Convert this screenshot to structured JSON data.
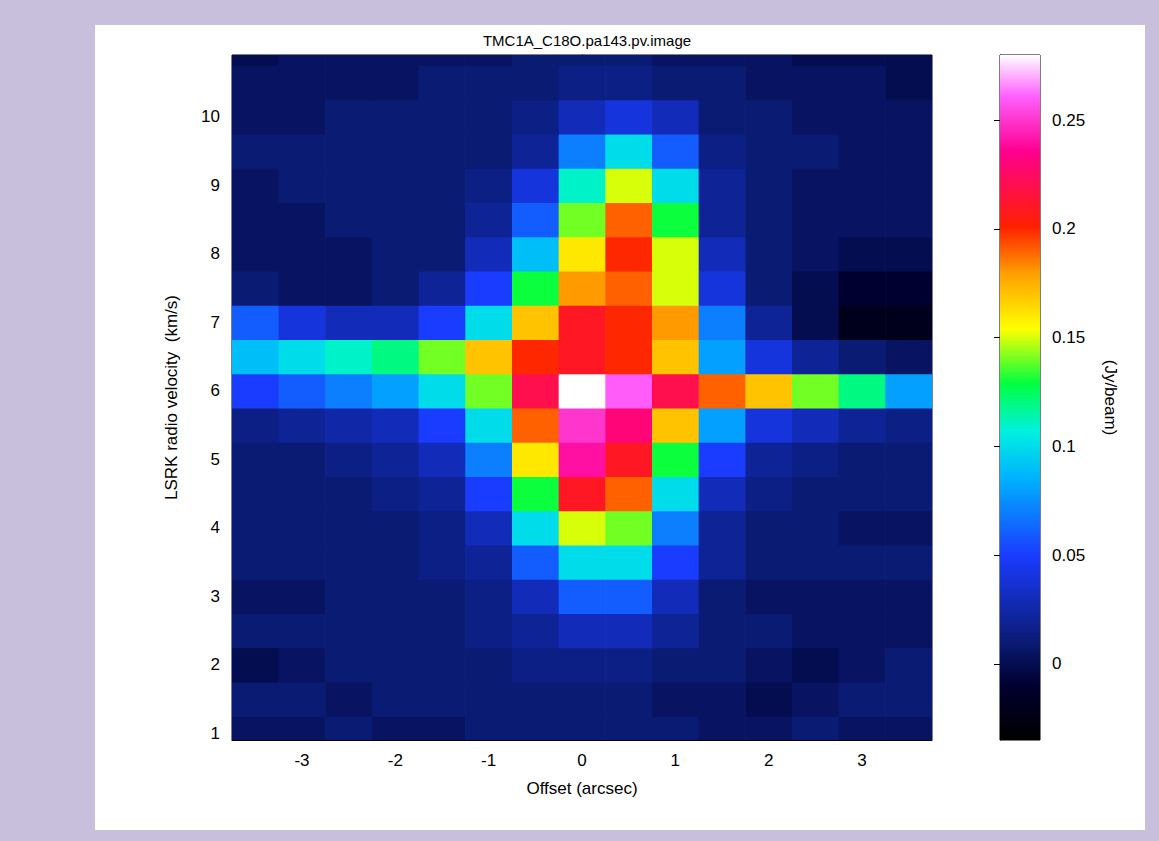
{
  "chart_data": {
    "type": "heatmap",
    "title": "TMC1A_C18O.pa143.pv.image",
    "xlabel": "Offset (arcsec)",
    "ylabel": "LSRK radio velocity  (km/s)",
    "xlim": [
      -3.75,
      3.75
    ],
    "ylim": [
      0.9,
      10.9
    ],
    "xticks": [
      -3,
      -2,
      -1,
      0,
      1,
      2,
      3
    ],
    "yticks": [
      1,
      2,
      3,
      4,
      5,
      6,
      7,
      8,
      9,
      10
    ],
    "x": [
      -3.5,
      -3,
      -2.5,
      -2,
      -1.5,
      -1,
      -0.5,
      0,
      0.5,
      1,
      1.5,
      2,
      2.5,
      3,
      3.5
    ],
    "y": [
      1,
      1.5,
      2,
      2.5,
      3,
      3.5,
      4,
      4.5,
      5,
      5.5,
      6,
      6.5,
      7,
      7.5,
      8,
      8.5,
      9,
      9.5,
      10,
      10.5,
      11
    ],
    "values": [
      [
        0.005,
        0.005,
        0.01,
        0.005,
        0.005,
        0.01,
        0.01,
        0.01,
        0.01,
        0.01,
        0.005,
        0.005,
        0.01,
        0.005,
        0.005
      ],
      [
        0.01,
        0.01,
        0.005,
        0.01,
        0.01,
        0.01,
        0.01,
        0.01,
        0.01,
        0.005,
        0.005,
        0.0,
        0.005,
        0.01,
        0.01
      ],
      [
        0.0,
        0.005,
        0.01,
        0.01,
        0.01,
        0.01,
        0.015,
        0.015,
        0.015,
        0.01,
        0.01,
        0.005,
        0.0,
        0.005,
        0.01
      ],
      [
        0.01,
        0.01,
        0.01,
        0.01,
        0.01,
        0.015,
        0.02,
        0.03,
        0.03,
        0.02,
        0.01,
        0.01,
        0.005,
        0.005,
        0.005
      ],
      [
        0.005,
        0.005,
        0.01,
        0.01,
        0.01,
        0.015,
        0.03,
        0.06,
        0.06,
        0.03,
        0.01,
        0.005,
        0.005,
        0.005,
        0.005
      ],
      [
        0.01,
        0.01,
        0.01,
        0.01,
        0.015,
        0.02,
        0.06,
        0.1,
        0.1,
        0.05,
        0.02,
        0.01,
        0.01,
        0.01,
        0.01
      ],
      [
        0.01,
        0.01,
        0.01,
        0.01,
        0.015,
        0.03,
        0.1,
        0.15,
        0.14,
        0.07,
        0.02,
        0.01,
        0.01,
        0.005,
        0.005
      ],
      [
        0.01,
        0.01,
        0.01,
        0.015,
        0.02,
        0.05,
        0.13,
        0.21,
        0.19,
        0.1,
        0.03,
        0.015,
        0.01,
        0.01,
        0.01
      ],
      [
        0.01,
        0.01,
        0.015,
        0.02,
        0.03,
        0.07,
        0.16,
        0.24,
        0.21,
        0.13,
        0.05,
        0.02,
        0.015,
        0.01,
        0.01
      ],
      [
        0.015,
        0.02,
        0.025,
        0.03,
        0.05,
        0.1,
        0.19,
        0.25,
        0.23,
        0.17,
        0.08,
        0.04,
        0.03,
        0.02,
        0.015
      ],
      [
        0.05,
        0.06,
        0.07,
        0.08,
        0.1,
        0.14,
        0.22,
        0.28,
        0.26,
        0.22,
        0.19,
        0.17,
        0.14,
        0.12,
        0.08
      ],
      [
        0.09,
        0.1,
        0.11,
        0.12,
        0.14,
        0.17,
        0.2,
        0.21,
        0.2,
        0.17,
        0.08,
        0.04,
        0.02,
        0.01,
        0.005
      ],
      [
        0.06,
        0.04,
        0.03,
        0.03,
        0.05,
        0.1,
        0.17,
        0.21,
        0.2,
        0.18,
        0.07,
        0.02,
        0.0,
        -0.02,
        -0.02
      ],
      [
        0.01,
        0.005,
        0.005,
        0.01,
        0.02,
        0.05,
        0.13,
        0.18,
        0.19,
        0.15,
        0.04,
        0.01,
        0.0,
        -0.01,
        -0.01
      ],
      [
        0.005,
        0.005,
        0.005,
        0.01,
        0.01,
        0.03,
        0.09,
        0.16,
        0.2,
        0.15,
        0.03,
        0.01,
        0.005,
        0.0,
        0.0
      ],
      [
        0.005,
        0.005,
        0.01,
        0.01,
        0.01,
        0.02,
        0.06,
        0.14,
        0.19,
        0.13,
        0.02,
        0.01,
        0.005,
        0.005,
        0.005
      ],
      [
        0.005,
        0.01,
        0.01,
        0.01,
        0.01,
        0.015,
        0.04,
        0.11,
        0.15,
        0.1,
        0.02,
        0.01,
        0.005,
        0.005,
        0.005
      ],
      [
        0.01,
        0.01,
        0.01,
        0.01,
        0.01,
        0.01,
        0.02,
        0.07,
        0.1,
        0.06,
        0.015,
        0.01,
        0.01,
        0.005,
        0.005
      ],
      [
        0.005,
        0.005,
        0.01,
        0.01,
        0.01,
        0.01,
        0.015,
        0.03,
        0.04,
        0.03,
        0.01,
        0.01,
        0.005,
        0.005,
        0.005
      ],
      [
        0.005,
        0.005,
        0.005,
        0.005,
        0.01,
        0.01,
        0.01,
        0.015,
        0.015,
        0.01,
        0.01,
        0.005,
        0.005,
        0.005,
        0.0
      ],
      [
        0.0,
        0.005,
        0.005,
        0.005,
        0.005,
        0.005,
        0.01,
        0.01,
        0.01,
        0.005,
        0.005,
        0.005,
        0.0,
        0.0,
        0.0
      ]
    ],
    "colorbar": {
      "label": "(Jy/beam)",
      "range": [
        -0.035,
        0.28
      ],
      "ticks": [
        0,
        0.05,
        0.1,
        0.15,
        0.2,
        0.25
      ]
    }
  }
}
